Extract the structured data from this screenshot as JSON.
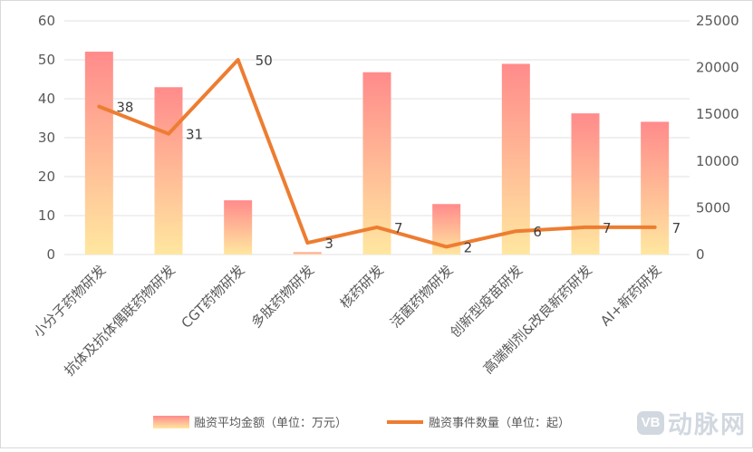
{
  "chart_data": {
    "type": "bar",
    "categories": [
      "小分子药物研发",
      "抗体及抗体偶联药物研发",
      "CGT药物研发",
      "多肽药物研发",
      "核药研发",
      "活菌药物研发",
      "创新型疫苗研发",
      "高端制剂&改良新药研发",
      "AI+新药研发"
    ],
    "series": [
      {
        "name": "融资平均金额（单位：万元）",
        "type": "bar",
        "axis": "right",
        "values": [
          21700,
          17900,
          5800,
          250,
          19500,
          5400,
          20400,
          15100,
          14200
        ]
      },
      {
        "name": "融资事件数量（单位：起）",
        "type": "line",
        "axis": "left",
        "values": [
          38,
          31,
          50,
          3,
          7,
          2,
          6,
          7,
          7
        ],
        "labels": [
          "38",
          "31",
          "50",
          "3",
          "7",
          "2",
          "6",
          "7",
          "7"
        ]
      }
    ],
    "y_left": {
      "min": 0,
      "max": 60,
      "ticks": [
        "0",
        "10",
        "20",
        "30",
        "40",
        "50",
        "60"
      ]
    },
    "y_right": {
      "min": 0,
      "max": 25000,
      "ticks": [
        "0",
        "5000",
        "10000",
        "15000",
        "20000",
        "25000"
      ]
    },
    "grid": true,
    "legend_position": "bottom",
    "colors": {
      "bar_top": "#ff8b8b",
      "bar_bottom": "#ffe7a0",
      "line": "#ed7d31",
      "grid": "#e0e0e0",
      "axis_text": "#595959"
    }
  },
  "watermark": {
    "logo": "VB",
    "text": "动脉网"
  }
}
